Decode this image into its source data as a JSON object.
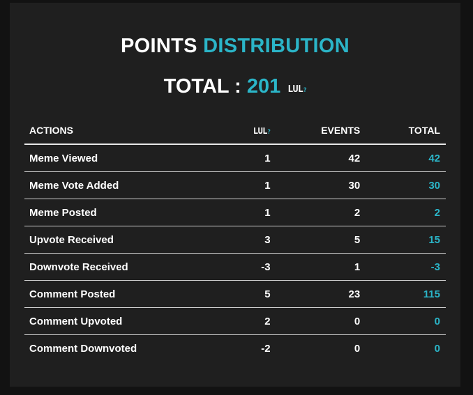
{
  "header": {
    "title_part1": "POINTS",
    "title_part2": "DISTRIBUTION",
    "total_label": "TOTAL :",
    "total_value": "201",
    "currency_logo": "LUL"
  },
  "table": {
    "columns": {
      "actions": "ACTIONS",
      "lul": "LUL",
      "events": "EVENTS",
      "total": "TOTAL"
    },
    "rows": [
      {
        "action": "Meme Viewed",
        "lul": "1",
        "events": "42",
        "total": "42"
      },
      {
        "action": "Meme Vote Added",
        "lul": "1",
        "events": "30",
        "total": "30"
      },
      {
        "action": "Meme Posted",
        "lul": "1",
        "events": "2",
        "total": "2"
      },
      {
        "action": "Upvote Received",
        "lul": "3",
        "events": "5",
        "total": "15"
      },
      {
        "action": "Downvote Received",
        "lul": "-3",
        "events": "1",
        "total": "-3"
      },
      {
        "action": "Comment Posted",
        "lul": "5",
        "events": "23",
        "total": "115"
      },
      {
        "action": "Comment Upvoted",
        "lul": "2",
        "events": "0",
        "total": "0"
      },
      {
        "action": "Comment Downvoted",
        "lul": "-2",
        "events": "0",
        "total": "0"
      }
    ]
  },
  "colors": {
    "accent": "#2bb5c8",
    "panel": "#1f1f1f",
    "background": "#121212"
  }
}
